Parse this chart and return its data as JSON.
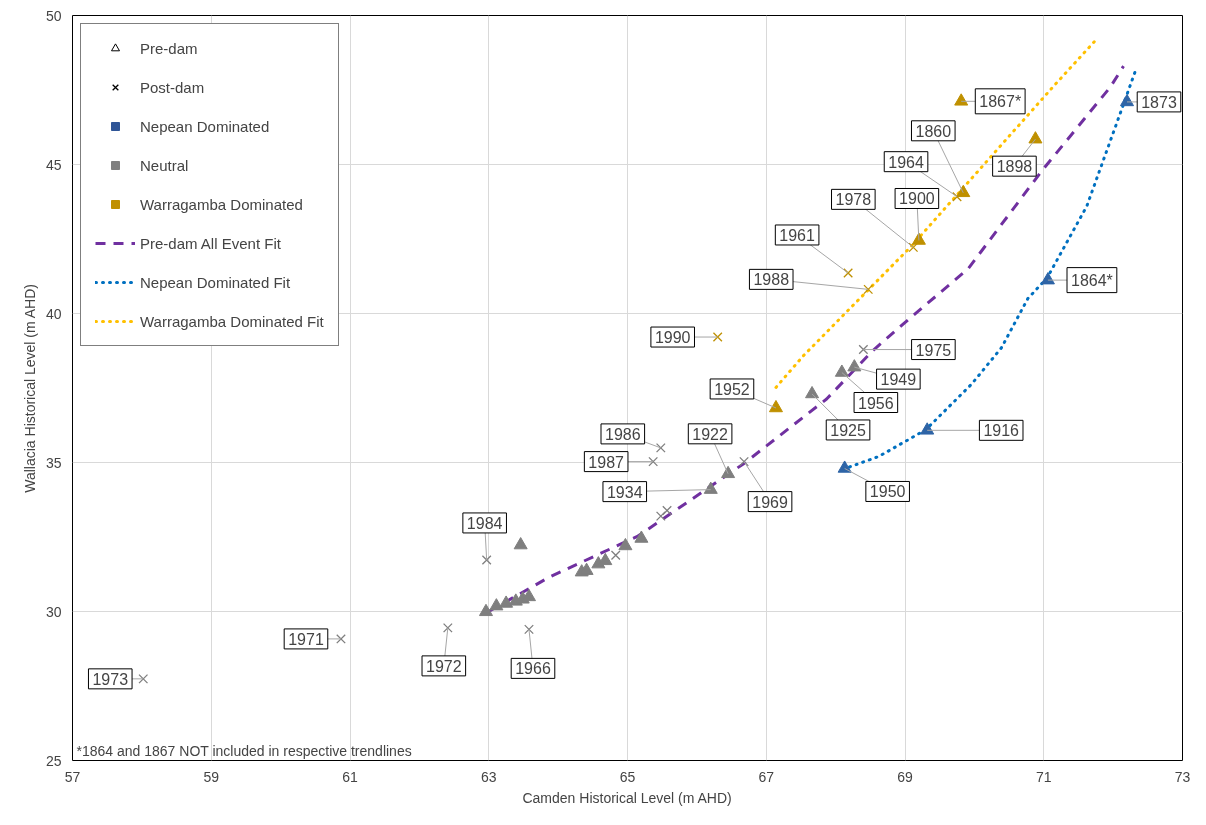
{
  "chart_data": {
    "type": "scatter",
    "xlabel": "Camden Historical Level (m AHD)",
    "ylabel": "Wallacia Historical Level (m AHD)",
    "xlim": [
      57,
      73
    ],
    "xticks": [
      57,
      59,
      61,
      63,
      65,
      67,
      69,
      71,
      73
    ],
    "ylim": [
      25,
      50
    ],
    "yticks": [
      25,
      30,
      35,
      40,
      45,
      50
    ],
    "grid": true,
    "legend": "top left",
    "series": [
      {
        "name": "Pre-dam",
        "marker": "triangle",
        "color": "#000000"
      },
      {
        "name": "Post-dam",
        "marker": "cross",
        "color": "#000000"
      },
      {
        "name": "Nepean Dominated",
        "marker": "square",
        "color": "#2f5597"
      },
      {
        "name": "Neutral",
        "marker": "square",
        "color": "#808080"
      },
      {
        "name": "Warragamba Dominated",
        "marker": "square",
        "color": "#c09000"
      },
      {
        "name": "Pre-dam All Event Fit",
        "type": "line",
        "line_style": "dashed",
        "color": "#7030a0",
        "x": [
          63.0,
          63.87,
          65.15,
          66.68,
          67.87,
          68.53,
          68.96,
          69.91,
          70.96,
          71.96,
          72.15
        ],
        "values": [
          30.0,
          31.15,
          32.53,
          34.97,
          37.13,
          38.74,
          39.62,
          41.5,
          44.75,
          47.6,
          48.3
        ]
      },
      {
        "name": "Nepean Dominated Fit",
        "type": "line",
        "line_style": "dotted",
        "color": "#0070c0",
        "x": [
          68.2,
          68.62,
          69.3,
          69.96,
          70.39,
          70.77,
          71.05,
          71.62,
          72.1,
          72.33
        ],
        "values": [
          34.85,
          35.2,
          36.1,
          37.63,
          38.85,
          40.5,
          41.2,
          43.6,
          46.7,
          48.2
        ]
      },
      {
        "name": "Warragamba Dominated Fit",
        "type": "line",
        "line_style": "dotted",
        "color": "#ffc000",
        "x": [
          67.14,
          67.53,
          69.1,
          71.15,
          71.76
        ],
        "values": [
          37.52,
          38.57,
          42.28,
          47.65,
          49.2
        ]
      },
      {
        "marker": "triangle",
        "color": "#2e64a6",
        "x": [
          68.13,
          69.32,
          71.06,
          72.2
        ],
        "values": [
          34.8,
          36.08,
          41.12,
          47.1
        ]
      },
      {
        "marker": "triangle",
        "color": "#7f7f7f",
        "x": [
          62.96,
          63.11,
          63.25,
          63.39,
          63.49,
          63.58,
          63.46,
          64.34,
          64.41,
          64.58,
          64.68,
          64.97,
          65.2,
          66.2,
          66.45,
          67.66,
          68.09,
          68.27
        ],
        "values": [
          29.99,
          30.18,
          30.27,
          30.34,
          30.41,
          30.49,
          32.23,
          31.32,
          31.37,
          31.59,
          31.7,
          32.2,
          32.45,
          34.09,
          34.62,
          37.3,
          38.02,
          38.2
        ]
      },
      {
        "marker": "triangle",
        "color": "#bf9000",
        "x": [
          67.14,
          69.2,
          69.84,
          70.88,
          69.81
        ],
        "values": [
          36.83,
          42.45,
          44.05,
          45.85,
          47.12
        ]
      },
      {
        "marker": "cross",
        "color": "#7f7f7f",
        "x": [
          58.02,
          60.87,
          62.41,
          63.58,
          62.97,
          64.83,
          65.48,
          65.57,
          65.48,
          65.37,
          66.68,
          68.4
        ],
        "values": [
          27.74,
          29.08,
          29.45,
          29.4,
          31.73,
          31.89,
          33.2,
          33.39,
          35.49,
          35.03,
          35.03,
          38.79
        ]
      },
      {
        "marker": "cross",
        "color": "#bf9000",
        "x": [
          66.3,
          68.18,
          68.47,
          69.12,
          69.75
        ],
        "values": [
          39.21,
          41.36,
          40.81,
          42.22,
          43.92
        ]
      }
    ],
    "annotations": [
      {
        "text": "1990",
        "x": 66.3,
        "y": 39.21
      },
      {
        "text": "1952",
        "x": 67.14,
        "y": 36.83
      },
      {
        "text": "1961",
        "x": 68.18,
        "y": 41.36
      },
      {
        "text": "1964",
        "x": 69.75,
        "y": 43.92
      },
      {
        "text": "1978",
        "x": 69.12,
        "y": 42.22
      },
      {
        "text": "1988",
        "x": 68.47,
        "y": 40.81
      },
      {
        "text": "1900",
        "x": 69.2,
        "y": 42.45
      },
      {
        "text": "1860",
        "x": 69.84,
        "y": 44.05
      },
      {
        "text": "1898",
        "x": 70.88,
        "y": 45.85
      },
      {
        "text": "1867*",
        "x": 69.81,
        "y": 47.12
      },
      {
        "text": "1873",
        "x": 72.2,
        "y": 47.1
      },
      {
        "text": "1864*",
        "x": 71.06,
        "y": 41.12
      },
      {
        "text": "1916",
        "x": 69.32,
        "y": 36.08
      },
      {
        "text": "1950",
        "x": 68.13,
        "y": 34.8
      },
      {
        "text": "1975",
        "x": 68.4,
        "y": 38.79
      },
      {
        "text": "1949",
        "x": 68.27,
        "y": 38.2
      },
      {
        "text": "1956",
        "x": 68.09,
        "y": 38.02
      },
      {
        "text": "1925",
        "x": 67.66,
        "y": 37.3
      },
      {
        "text": "1922",
        "x": 66.45,
        "y": 34.62
      },
      {
        "text": "1969",
        "x": 66.68,
        "y": 35.03
      },
      {
        "text": "1934",
        "x": 66.2,
        "y": 34.09
      },
      {
        "text": "1987",
        "x": 65.37,
        "y": 35.03
      },
      {
        "text": "1986",
        "x": 65.48,
        "y": 35.49
      },
      {
        "text": "1984",
        "x": 62.97,
        "y": 31.73
      },
      {
        "text": "1972",
        "x": 62.41,
        "y": 29.45
      },
      {
        "text": "1966",
        "x": 63.58,
        "y": 29.4
      },
      {
        "text": "1971",
        "x": 60.87,
        "y": 29.08
      },
      {
        "text": "1973",
        "x": 58.02,
        "y": 27.74
      },
      "*1864 and 1867 NOT included in respective trendlines"
    ]
  }
}
